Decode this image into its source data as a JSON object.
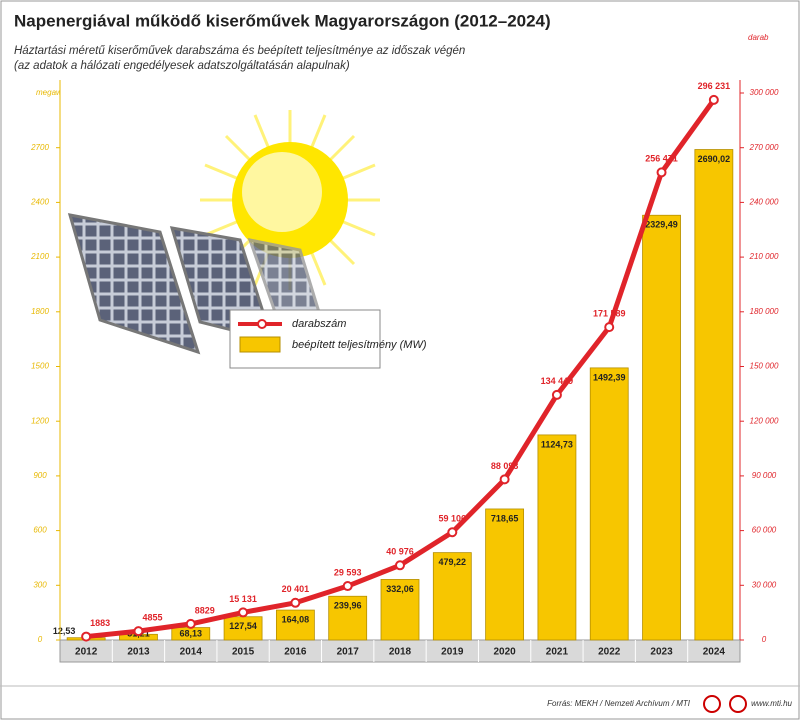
{
  "chart_data": {
    "type": "bar",
    "title": "Napenergiával működő kiserőművek Magyarországon (2012–2024)",
    "subtitle": [
      "Háztartási méretű kiserőművek darabszáma és beépített teljesítménye az időszak végén",
      "(az adatok a hálózati engedélyesek adatszolgáltatásán alapulnak)"
    ],
    "ylabel": "megawatt",
    "y2label": "darab",
    "categories": [
      "2012",
      "2013",
      "2014",
      "2015",
      "2016",
      "2017",
      "2018",
      "2019",
      "2020",
      "2021",
      "2022",
      "2023",
      "2024"
    ],
    "series": [
      {
        "name": "beépített teljesítmény (MW)",
        "type": "bar",
        "color": "#f7c600",
        "axis": "y",
        "values": [
          12.53,
          31.21,
          68.13,
          127.54,
          164.08,
          239.96,
          332.06,
          479.22,
          718.65,
          1124.73,
          1492.39,
          2329.49,
          2690.02
        ],
        "value_labels": [
          "12,53",
          "31,21",
          "68,13",
          "127,54",
          "164,08",
          "239,96",
          "332,06",
          "479,22",
          "718,65",
          "1124,73",
          "1492,39",
          "2329,49",
          "2690,02"
        ]
      },
      {
        "name": "darabszám",
        "type": "line",
        "color": "#e0242a",
        "axis": "y2",
        "values": [
          1883,
          4855,
          8829,
          15131,
          20401,
          29593,
          40976,
          59106,
          88093,
          134449,
          171589,
          256471,
          296231
        ],
        "value_labels": [
          "1883",
          "4855",
          "8829",
          "15 131",
          "20 401",
          "29 593",
          "40 976",
          "59 106",
          "88 093",
          "134 449",
          "171 589",
          "256 471",
          "296 231"
        ]
      }
    ],
    "ylim": [
      0,
      3000
    ],
    "yticks": [
      0,
      300,
      600,
      900,
      1200,
      1500,
      1800,
      2100,
      2400,
      2700
    ],
    "y2lim": [
      0,
      300000
    ],
    "y2ticks": [
      0,
      {
        "value": 30000,
        "label": "30 000"
      },
      {
        "value": 60000,
        "label": "60 000"
      },
      {
        "value": 90000,
        "label": "90 000"
      },
      {
        "value": 120000,
        "label": "120 000"
      },
      {
        "value": 150000,
        "label": "150 000"
      },
      {
        "value": 180000,
        "label": "180 000"
      },
      {
        "value": 210000,
        "label": "210 000"
      },
      {
        "value": 240000,
        "label": "240 000"
      },
      {
        "value": 270000,
        "label": "270 000"
      },
      {
        "value": 300000,
        "label": "300 000"
      }
    ],
    "grid": false
  },
  "source": "Forrás: MEKH / Nemzeti Archívum / MTI",
  "url": "www.mti.hu"
}
